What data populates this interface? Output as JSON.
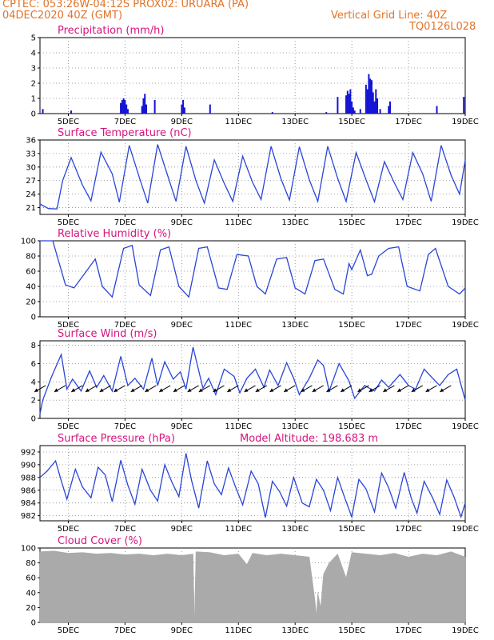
{
  "header": {
    "line1": "CPTEC:   053:26W-04:12S   PROX02: URUARA (PA)",
    "line2": "04DEC2020 40Z (GMT)",
    "grid_note": "Vertical Grid Line: 40Z",
    "run_id": "TQ0126L028"
  },
  "x_ticks": [
    "5DEC",
    "7DEC",
    "9DEC",
    "11DEC",
    "13DEC",
    "15DEC",
    "17DEC",
    "19DEC"
  ],
  "chart_data": [
    {
      "id": "precip",
      "type": "bar",
      "title": "Precipitation (mm/h)",
      "ylim": [
        0,
        5
      ],
      "yticks": [
        0,
        1,
        2,
        3,
        4,
        5
      ],
      "color": "#1414d4",
      "x_days": [
        4.1,
        5.1,
        6.85,
        6.9,
        6.95,
        7.0,
        7.05,
        7.1,
        7.6,
        7.65,
        7.7,
        7.75,
        8.05,
        9.0,
        9.05,
        9.1,
        10.0,
        12.2,
        14.1,
        14.5,
        14.8,
        14.85,
        14.9,
        14.95,
        15.0,
        15.05,
        15.1,
        15.3,
        15.5,
        15.55,
        15.6,
        15.65,
        15.7,
        15.75,
        15.8,
        15.85,
        15.9,
        16.0,
        16.3,
        16.35,
        18.0,
        18.95
      ],
      "values": [
        0.3,
        0.2,
        0.7,
        0.9,
        1.0,
        0.9,
        0.6,
        0.3,
        0.5,
        1.0,
        1.3,
        0.6,
        0.9,
        0.6,
        0.9,
        0.4,
        0.6,
        0.1,
        0.1,
        1.1,
        1.2,
        1.5,
        1.3,
        1.6,
        0.8,
        0.4,
        0.2,
        0.3,
        1.9,
        1.6,
        2.6,
        2.3,
        2.2,
        1.4,
        0.8,
        1.6,
        1.0,
        0.3,
        0.5,
        0.8,
        0.5,
        1.1
      ]
    },
    {
      "id": "temp",
      "type": "line",
      "title": "Surface Temperature (nC)",
      "ylim": [
        19.5,
        36
      ],
      "yticks": [
        21,
        24,
        27,
        30,
        33,
        36
      ],
      "color": "#2a45d8",
      "x_days": [
        4.0,
        4.3,
        4.6,
        4.8,
        5.1,
        5.5,
        5.8,
        6.15,
        6.55,
        6.8,
        7.15,
        7.5,
        7.8,
        8.15,
        8.5,
        8.8,
        9.15,
        9.5,
        9.8,
        10.15,
        10.5,
        10.8,
        11.15,
        11.5,
        11.8,
        12.15,
        12.5,
        12.8,
        13.15,
        13.5,
        13.8,
        14.15,
        14.5,
        14.8,
        15.15,
        15.5,
        15.8,
        16.15,
        16.5,
        16.8,
        17.15,
        17.5,
        17.8,
        18.15,
        18.5,
        18.8,
        19.0
      ],
      "values": [
        21.8,
        20.8,
        20.7,
        27.0,
        32.1,
        26.0,
        22.5,
        33.3,
        28.5,
        22.2,
        34.8,
        27.8,
        22.0,
        35.0,
        28.2,
        22.4,
        34.6,
        27.0,
        22.0,
        31.6,
        26.4,
        22.4,
        32.4,
        26.6,
        22.8,
        34.6,
        27.4,
        22.7,
        34.5,
        27.2,
        22.4,
        34.6,
        27.5,
        22.4,
        33.2,
        27.2,
        22.3,
        31.2,
        26.5,
        22.8,
        33.2,
        28.5,
        22.4,
        34.8,
        28.2,
        24.0,
        31.5
      ]
    },
    {
      "id": "rh",
      "type": "line",
      "title": "Relative Humidity (%)",
      "ylim": [
        0,
        100
      ],
      "yticks": [
        0,
        20,
        40,
        60,
        80,
        100
      ],
      "color": "#2a45d8",
      "x_days": [
        4.0,
        4.45,
        4.9,
        5.2,
        5.6,
        5.95,
        6.2,
        6.55,
        6.95,
        7.25,
        7.5,
        7.9,
        8.25,
        8.55,
        8.9,
        9.25,
        9.6,
        9.9,
        10.3,
        10.6,
        10.95,
        11.35,
        11.65,
        11.95,
        12.35,
        12.7,
        13.0,
        13.35,
        13.7,
        14.0,
        14.4,
        14.7,
        14.9,
        15.0,
        15.3,
        15.55,
        15.7,
        15.95,
        16.3,
        16.65,
        16.95,
        17.4,
        17.7,
        17.95,
        18.4,
        18.8,
        19.0
      ],
      "values": [
        100,
        100,
        42,
        38,
        58,
        76,
        40,
        26,
        90,
        94,
        42,
        28,
        88,
        92,
        40,
        26,
        90,
        92,
        38,
        36,
        82,
        80,
        40,
        30,
        76,
        78,
        38,
        30,
        74,
        76,
        36,
        30,
        70,
        62,
        88,
        54,
        56,
        80,
        90,
        92,
        40,
        34,
        82,
        90,
        40,
        30,
        38
      ]
    },
    {
      "id": "wind",
      "type": "line",
      "title": "Surface Wind (m/s)",
      "ylim": [
        0,
        8.5
      ],
      "yticks": [
        0,
        2,
        4,
        6,
        8
      ],
      "color": "#2a45d8",
      "x_days": [
        4.0,
        4.1,
        4.4,
        4.75,
        4.95,
        5.15,
        5.45,
        5.75,
        6.0,
        6.25,
        6.55,
        6.85,
        7.1,
        7.35,
        7.65,
        7.95,
        8.15,
        8.4,
        8.7,
        8.95,
        9.15,
        9.4,
        9.75,
        9.95,
        10.2,
        10.5,
        10.85,
        11.05,
        11.3,
        11.6,
        11.9,
        12.1,
        12.4,
        12.7,
        12.95,
        13.15,
        13.5,
        13.8,
        14.0,
        14.2,
        14.55,
        14.9,
        15.1,
        15.45,
        15.8,
        16.05,
        16.3,
        16.7,
        17.0,
        17.25,
        17.55,
        17.85,
        18.1,
        18.4,
        18.7,
        19.0
      ],
      "values": [
        0.5,
        2.0,
        4.5,
        7.0,
        3.2,
        4.3,
        3.0,
        5.2,
        3.4,
        4.7,
        3.0,
        6.8,
        3.6,
        4.4,
        3.2,
        6.6,
        3.6,
        6.2,
        4.3,
        5.1,
        3.2,
        7.8,
        3.3,
        4.4,
        2.6,
        5.4,
        4.6,
        2.8,
        4.4,
        5.4,
        3.4,
        5.3,
        3.6,
        6.1,
        4.4,
        2.6,
        4.4,
        6.4,
        5.8,
        3.0,
        6.0,
        4.1,
        2.2,
        3.6,
        3.0,
        4.2,
        3.4,
        4.8,
        3.6,
        3.2,
        5.4,
        4.4,
        3.6,
        4.8,
        5.4,
        2.0
      ],
      "barbs_x": [
        4.2,
        4.9,
        5.5,
        6.0,
        6.5,
        7.0,
        7.6,
        8.1,
        8.6,
        9.1,
        9.6,
        10.0,
        10.5,
        11.0,
        11.6,
        12.0,
        12.5,
        13.0,
        13.6,
        14.0,
        14.5,
        15.0,
        15.6,
        16.0,
        16.5,
        17.0,
        17.5,
        18.0,
        18.5
      ]
    },
    {
      "id": "pressure",
      "type": "line",
      "title": "Surface Pressure (hPa)",
      "annotation": "Model Altitude: 198.683 m",
      "ylim": [
        981.2,
        993
      ],
      "yticks": [
        982,
        984,
        986,
        988,
        990,
        992
      ],
      "color": "#2a45d8",
      "x_days": [
        4.0,
        4.25,
        4.55,
        4.75,
        4.95,
        5.25,
        5.5,
        5.8,
        6.05,
        6.3,
        6.55,
        6.85,
        7.1,
        7.35,
        7.6,
        7.9,
        8.15,
        8.4,
        8.65,
        8.9,
        9.15,
        9.35,
        9.6,
        9.9,
        10.15,
        10.4,
        10.65,
        10.9,
        11.15,
        11.45,
        11.7,
        11.95,
        12.2,
        12.45,
        12.7,
        12.95,
        13.25,
        13.5,
        13.75,
        14.0,
        14.25,
        14.5,
        14.75,
        15.0,
        15.25,
        15.5,
        15.8,
        16.05,
        16.3,
        16.55,
        16.85,
        17.1,
        17.3,
        17.55,
        17.85,
        18.1,
        18.35,
        18.6,
        18.85,
        19.0
      ],
      "values": [
        988.0,
        989.0,
        990.6,
        987.5,
        984.6,
        989.3,
        986.5,
        984.8,
        989.6,
        988.4,
        984.2,
        990.7,
        986.8,
        983.8,
        989.3,
        986.0,
        984.3,
        990.0,
        987.3,
        985.0,
        991.8,
        987.5,
        983.2,
        990.6,
        987.0,
        985.3,
        989.5,
        986.5,
        983.7,
        989.0,
        987.0,
        981.7,
        987.4,
        985.8,
        983.5,
        988.0,
        984.0,
        983.4,
        987.7,
        986.0,
        982.8,
        988.0,
        984.8,
        981.8,
        987.7,
        986.2,
        982.6,
        988.7,
        986.4,
        983.2,
        988.8,
        984.7,
        982.4,
        987.4,
        984.8,
        982.2,
        987.6,
        985.0,
        981.8,
        984.0
      ]
    },
    {
      "id": "cloud",
      "type": "area",
      "title": "Cloud Cover (%)",
      "ylim": [
        0,
        100
      ],
      "yticks": [
        0,
        20,
        40,
        60,
        80,
        100
      ],
      "color": "#aaaaaa",
      "x_days": [
        4.0,
        4.5,
        5.0,
        5.5,
        6.0,
        6.5,
        7.0,
        7.5,
        8.0,
        8.5,
        9.0,
        9.4,
        9.45,
        9.5,
        10.0,
        10.5,
        11.0,
        11.3,
        11.5,
        12.0,
        12.5,
        13.0,
        13.5,
        13.7,
        13.75,
        13.8,
        13.9,
        14.0,
        14.2,
        14.5,
        14.8,
        15.0,
        15.5,
        16.0,
        16.5,
        17.0,
        17.5,
        18.0,
        18.5,
        19.0
      ],
      "values": [
        95,
        96,
        93,
        94,
        92,
        93,
        91,
        92,
        90,
        92,
        90,
        92,
        0,
        95,
        94,
        90,
        92,
        78,
        93,
        90,
        92,
        90,
        88,
        30,
        10,
        40,
        20,
        65,
        80,
        92,
        60,
        94,
        92,
        90,
        93,
        88,
        92,
        90,
        95,
        88
      ]
    }
  ]
}
